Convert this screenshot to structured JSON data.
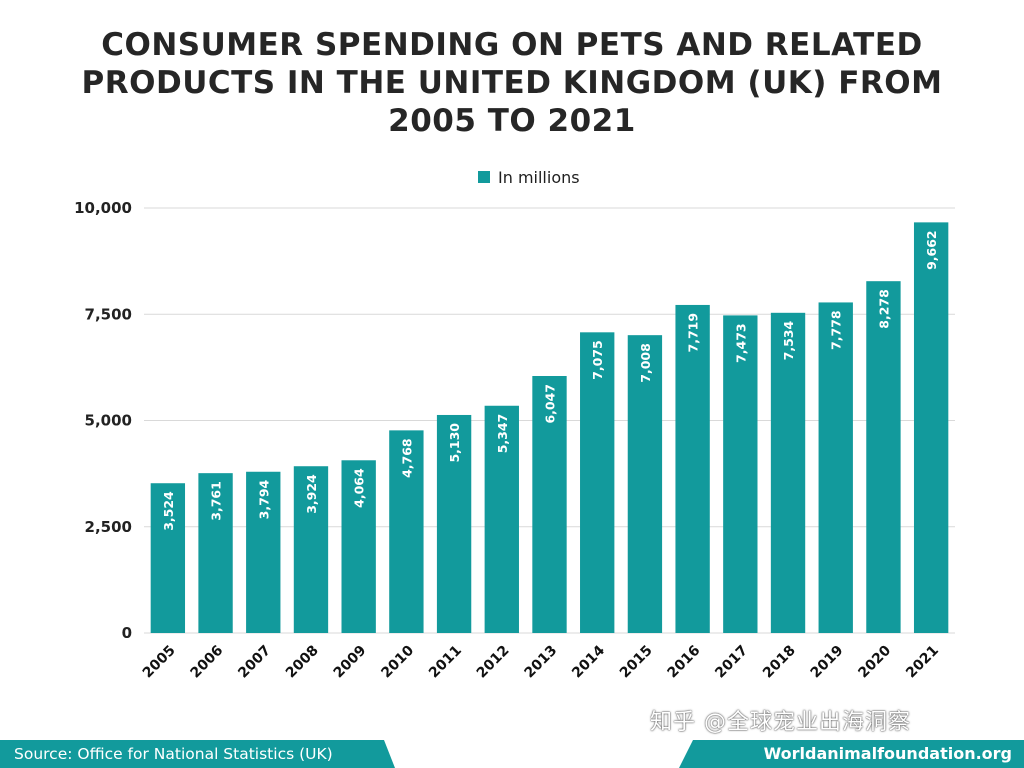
{
  "chart_data": {
    "type": "bar",
    "title": "CONSUMER SPENDING ON PETS AND RELATED PRODUCTS IN THE UNITED KINGDOM (UK) FROM 2005 TO 2021",
    "xlabel": "",
    "ylabel": "",
    "categories": [
      "2005",
      "2006",
      "2007",
      "2008",
      "2009",
      "2010",
      "2011",
      "2012",
      "2013",
      "2014",
      "2015",
      "2016",
      "2017",
      "2018",
      "2019",
      "2020",
      "2021"
    ],
    "series": [
      {
        "name": "In millions",
        "values": [
          3524,
          3761,
          3794,
          3924,
          4064,
          4768,
          5130,
          5347,
          6047,
          7075,
          7008,
          7719,
          7473,
          7534,
          7778,
          8278,
          9662
        ],
        "labels": [
          "3,524",
          "3,761",
          "3,794",
          "3,924",
          "4,064",
          "4,768",
          "5,130",
          "5,347",
          "6,047",
          "7,075",
          "7,008",
          "7,719",
          "7,473",
          "7,534",
          "7,778",
          "8,278",
          "9,662"
        ]
      }
    ],
    "ylim": [
      0,
      10000
    ],
    "yticks": [
      0,
      2500,
      5000,
      7500,
      10000
    ],
    "ytick_labels": [
      "0",
      "2,500",
      "5,000",
      "7,500",
      "10,000"
    ],
    "grid": true,
    "legend_position": "top-center",
    "bar_color": "#129a9c",
    "data_labels": "inside-vertical"
  },
  "footer": {
    "source": "Source: Office for National Statistics (UK)",
    "site": "Worldanimalfoundation.org"
  },
  "watermark": "知乎 @全球宠业出海洞察",
  "colors": {
    "accent": "#129a9c",
    "title": "#262626"
  }
}
